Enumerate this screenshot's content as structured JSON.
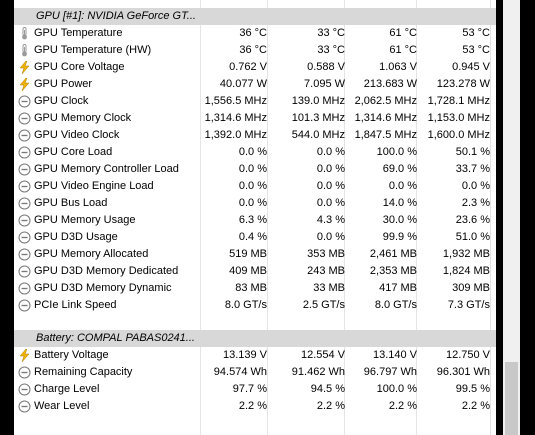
{
  "sections": [
    {
      "title": "GPU [#1]: NVIDIA GeForce GT...",
      "rows": [
        {
          "icon": "thermometer-icon",
          "label": "GPU Temperature",
          "v": [
            "36 °C",
            "33 °C",
            "61 °C",
            "53 °C"
          ]
        },
        {
          "icon": "thermometer-icon",
          "label": "GPU Temperature (HW)",
          "v": [
            "36 °C",
            "33 °C",
            "61 °C",
            "53 °C"
          ]
        },
        {
          "icon": "lightning-icon",
          "label": "GPU Core Voltage",
          "v": [
            "0.762 V",
            "0.588 V",
            "1.063 V",
            "0.945 V"
          ]
        },
        {
          "icon": "lightning-icon",
          "label": "GPU Power",
          "v": [
            "40.077 W",
            "7.095 W",
            "213.683 W",
            "123.278 W"
          ]
        },
        {
          "icon": "gauge-icon",
          "label": "GPU Clock",
          "v": [
            "1,556.5 MHz",
            "139.0 MHz",
            "2,062.5 MHz",
            "1,728.1 MHz"
          ]
        },
        {
          "icon": "gauge-icon",
          "label": "GPU Memory Clock",
          "v": [
            "1,314.6 MHz",
            "101.3 MHz",
            "1,314.6 MHz",
            "1,153.0 MHz"
          ]
        },
        {
          "icon": "gauge-icon",
          "label": "GPU Video Clock",
          "v": [
            "1,392.0 MHz",
            "544.0 MHz",
            "1,847.5 MHz",
            "1,600.0 MHz"
          ]
        },
        {
          "icon": "gauge-icon",
          "label": "GPU Core Load",
          "v": [
            "0.0 %",
            "0.0 %",
            "100.0 %",
            "50.1 %"
          ]
        },
        {
          "icon": "gauge-icon",
          "label": "GPU Memory Controller Load",
          "v": [
            "0.0 %",
            "0.0 %",
            "69.0 %",
            "33.7 %"
          ]
        },
        {
          "icon": "gauge-icon",
          "label": "GPU Video Engine Load",
          "v": [
            "0.0 %",
            "0.0 %",
            "0.0 %",
            "0.0 %"
          ]
        },
        {
          "icon": "gauge-icon",
          "label": "GPU Bus Load",
          "v": [
            "0.0 %",
            "0.0 %",
            "14.0 %",
            "2.3 %"
          ]
        },
        {
          "icon": "gauge-icon",
          "label": "GPU Memory Usage",
          "v": [
            "6.3 %",
            "4.3 %",
            "30.0 %",
            "23.6 %"
          ]
        },
        {
          "icon": "gauge-icon",
          "label": "GPU D3D Usage",
          "v": [
            "0.4 %",
            "0.0 %",
            "99.9 %",
            "51.0 %"
          ]
        },
        {
          "icon": "gauge-icon",
          "label": "GPU Memory Allocated",
          "v": [
            "519 MB",
            "353 MB",
            "2,461 MB",
            "1,932 MB"
          ]
        },
        {
          "icon": "gauge-icon",
          "label": "GPU D3D Memory Dedicated",
          "v": [
            "409 MB",
            "243 MB",
            "2,353 MB",
            "1,824 MB"
          ]
        },
        {
          "icon": "gauge-icon",
          "label": "GPU D3D Memory Dynamic",
          "v": [
            "83 MB",
            "33 MB",
            "417 MB",
            "309 MB"
          ]
        },
        {
          "icon": "gauge-icon",
          "label": "PCIe Link Speed",
          "v": [
            "8.0 GT/s",
            "2.5 GT/s",
            "8.0 GT/s",
            "7.3 GT/s"
          ]
        }
      ]
    },
    {
      "title": "Battery: COMPAL PABAS0241...",
      "rows": [
        {
          "icon": "lightning-icon",
          "label": "Battery Voltage",
          "v": [
            "13.139 V",
            "12.554 V",
            "13.140 V",
            "12.750 V"
          ]
        },
        {
          "icon": "gauge-icon",
          "label": "Remaining Capacity",
          "v": [
            "94.574 Wh",
            "91.462 Wh",
            "96.797 Wh",
            "96.301 Wh"
          ]
        },
        {
          "icon": "gauge-icon",
          "label": "Charge Level",
          "v": [
            "97.7 %",
            "94.5 %",
            "100.0 %",
            "99.5 %"
          ]
        },
        {
          "icon": "gauge-icon",
          "label": "Wear Level",
          "v": [
            "2.2 %",
            "2.2 %",
            "2.2 %",
            "2.2 %"
          ]
        }
      ]
    }
  ],
  "colors": {
    "thermometer": "#9a9a9a",
    "lightning": "#f0b400",
    "gauge": "#777777",
    "header": "#d8d8d8"
  }
}
